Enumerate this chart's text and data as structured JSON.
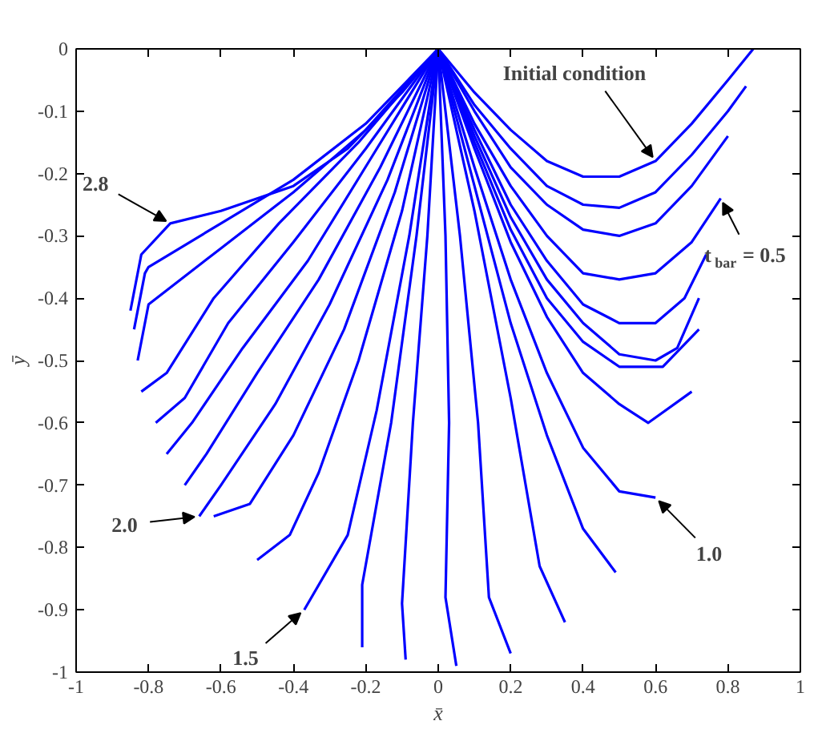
{
  "chart_data": {
    "type": "line",
    "xlabel": "x̄",
    "ylabel": "ȳ",
    "xlim": [
      -1,
      1
    ],
    "ylim": [
      -1,
      0
    ],
    "xticks": [
      -1,
      -0.8,
      -0.6,
      -0.4,
      -0.2,
      0,
      0.2,
      0.4,
      0.6,
      0.8,
      1
    ],
    "yticks": [
      -1,
      -0.9,
      -0.8,
      -0.7,
      -0.6,
      -0.5,
      -0.4,
      -0.3,
      -0.2,
      -0.1,
      0
    ],
    "grid": false,
    "marker": "none",
    "line_style": "solid",
    "annotations": [
      {
        "text": "Initial condition",
        "x": 0.6,
        "y": -0.18
      },
      {
        "text": "t$_{bar}$ = 0.5",
        "x": 0.78,
        "y": -0.24
      },
      {
        "text": "1.0",
        "x": 0.6,
        "y": -0.72
      },
      {
        "text": "1.5",
        "x": -0.37,
        "y": -0.9
      },
      {
        "text": "2.0",
        "x": -0.66,
        "y": -0.75
      },
      {
        "text": "2.8",
        "x": -0.74,
        "y": -0.28
      }
    ],
    "series": [
      {
        "color": "#0000ff",
        "x": [
          0,
          0.1,
          0.2,
          0.3,
          0.4,
          0.5,
          0.6,
          0.7,
          0.8,
          0.87
        ],
        "values": [
          0,
          -0.07,
          -0.13,
          -0.18,
          -0.205,
          -0.205,
          -0.18,
          -0.12,
          -0.05,
          0
        ]
      },
      {
        "color": "#0000ff",
        "x": [
          0,
          0.1,
          0.2,
          0.3,
          0.4,
          0.5,
          0.6,
          0.7,
          0.8,
          0.85
        ],
        "values": [
          0,
          -0.09,
          -0.16,
          -0.22,
          -0.25,
          -0.255,
          -0.23,
          -0.17,
          -0.1,
          -0.06
        ]
      },
      {
        "color": "#0000ff",
        "x": [
          0,
          0.1,
          0.2,
          0.3,
          0.4,
          0.5,
          0.6,
          0.7,
          0.8
        ],
        "values": [
          0,
          -0.1,
          -0.19,
          -0.25,
          -0.29,
          -0.3,
          -0.28,
          -0.22,
          -0.14
        ]
      },
      {
        "color": "#0000ff",
        "x": [
          0,
          0.1,
          0.2,
          0.3,
          0.4,
          0.5,
          0.6,
          0.7,
          0.78
        ],
        "values": [
          0,
          -0.12,
          -0.22,
          -0.3,
          -0.36,
          -0.37,
          -0.36,
          -0.31,
          -0.24
        ]
      },
      {
        "color": "#0000ff",
        "x": [
          0,
          0.1,
          0.2,
          0.3,
          0.4,
          0.5,
          0.6,
          0.68,
          0.74
        ],
        "values": [
          0,
          -0.13,
          -0.25,
          -0.34,
          -0.41,
          -0.44,
          -0.44,
          -0.4,
          -0.33
        ]
      },
      {
        "color": "#0000ff",
        "x": [
          0,
          0.1,
          0.2,
          0.3,
          0.4,
          0.5,
          0.6,
          0.66,
          0.72
        ],
        "values": [
          0,
          -0.14,
          -0.27,
          -0.37,
          -0.44,
          -0.49,
          -0.5,
          -0.48,
          -0.4
        ]
      },
      {
        "color": "#0000ff",
        "x": [
          0,
          0.1,
          0.2,
          0.3,
          0.4,
          0.5,
          0.62,
          0.72
        ],
        "values": [
          0,
          -0.15,
          -0.29,
          -0.4,
          -0.47,
          -0.51,
          -0.51,
          -0.45
        ]
      },
      {
        "color": "#0000ff",
        "x": [
          0,
          0.1,
          0.2,
          0.3,
          0.4,
          0.5,
          0.58,
          0.7
        ],
        "values": [
          0,
          -0.16,
          -0.31,
          -0.43,
          -0.52,
          -0.57,
          -0.6,
          -0.55
        ]
      },
      {
        "color": "#0000ff",
        "x": [
          0,
          0.1,
          0.2,
          0.3,
          0.4,
          0.5,
          0.6
        ],
        "values": [
          0,
          -0.19,
          -0.37,
          -0.52,
          -0.64,
          -0.71,
          -0.72
        ]
      },
      {
        "color": "#0000ff",
        "x": [
          0,
          0.1,
          0.2,
          0.3,
          0.4,
          0.49
        ],
        "values": [
          0,
          -0.22,
          -0.44,
          -0.62,
          -0.77,
          -0.84
        ]
      },
      {
        "color": "#0000ff",
        "x": [
          0,
          0.1,
          0.2,
          0.28,
          0.35
        ],
        "values": [
          0,
          -0.26,
          -0.56,
          -0.83,
          -0.92
        ]
      },
      {
        "color": "#0000ff",
        "x": [
          0,
          0.06,
          0.11,
          0.14,
          0.2
        ],
        "values": [
          0,
          -0.3,
          -0.6,
          -0.88,
          -0.97
        ]
      },
      {
        "color": "#0000ff",
        "x": [
          0,
          0.02,
          0.03,
          0.02,
          0.05
        ],
        "values": [
          0,
          -0.3,
          -0.6,
          -0.88,
          -0.99
        ]
      },
      {
        "color": "#0000ff",
        "x": [
          0,
          -0.03,
          -0.07,
          -0.1,
          -0.09
        ],
        "values": [
          0,
          -0.3,
          -0.6,
          -0.89,
          -0.98
        ]
      },
      {
        "color": "#0000ff",
        "x": [
          0,
          -0.06,
          -0.13,
          -0.21,
          -0.21
        ],
        "values": [
          0,
          -0.3,
          -0.6,
          -0.86,
          -0.96
        ]
      },
      {
        "color": "#0000ff",
        "x": [
          0,
          -0.08,
          -0.17,
          -0.25,
          -0.37
        ],
        "values": [
          0,
          -0.3,
          -0.58,
          -0.78,
          -0.9
        ]
      },
      {
        "color": "#0000ff",
        "x": [
          0,
          -0.1,
          -0.22,
          -0.33,
          -0.41,
          -0.5
        ],
        "values": [
          0,
          -0.26,
          -0.5,
          -0.68,
          -0.78,
          -0.82
        ]
      },
      {
        "color": "#0000ff",
        "x": [
          0,
          -0.12,
          -0.26,
          -0.4,
          -0.52,
          -0.62
        ],
        "values": [
          0,
          -0.23,
          -0.45,
          -0.62,
          -0.73,
          -0.75
        ]
      },
      {
        "color": "#0000ff",
        "x": [
          0,
          -0.14,
          -0.3,
          -0.45,
          -0.6,
          -0.66
        ],
        "values": [
          0,
          -0.21,
          -0.41,
          -0.57,
          -0.7,
          -0.75
        ]
      },
      {
        "color": "#0000ff",
        "x": [
          0,
          -0.16,
          -0.33,
          -0.5,
          -0.64,
          -0.7
        ],
        "values": [
          0,
          -0.19,
          -0.37,
          -0.52,
          -0.65,
          -0.7
        ]
      },
      {
        "color": "#0000ff",
        "x": [
          0,
          -0.18,
          -0.36,
          -0.54,
          -0.68,
          -0.75
        ],
        "values": [
          0,
          -0.17,
          -0.34,
          -0.48,
          -0.6,
          -0.65
        ]
      },
      {
        "color": "#0000ff",
        "x": [
          0,
          -0.2,
          -0.4,
          -0.58,
          -0.7,
          -0.78
        ],
        "values": [
          0,
          -0.16,
          -0.31,
          -0.44,
          -0.56,
          -0.6
        ]
      },
      {
        "color": "#0000ff",
        "x": [
          0,
          -0.22,
          -0.44,
          -0.62,
          -0.75,
          -0.82
        ],
        "values": [
          0,
          -0.15,
          -0.28,
          -0.4,
          -0.52,
          -0.55
        ]
      },
      {
        "color": "#0000ff",
        "x": [
          0,
          -0.2,
          -0.4,
          -0.6,
          -0.8,
          -0.83
        ],
        "values": [
          0,
          -0.13,
          -0.23,
          -0.32,
          -0.41,
          -0.5
        ]
      },
      {
        "color": "#0000ff",
        "x": [
          0,
          -0.2,
          -0.4,
          -0.6,
          -0.8,
          -0.81,
          -0.84
        ],
        "values": [
          0,
          -0.12,
          -0.21,
          -0.28,
          -0.35,
          -0.36,
          -0.45
        ]
      },
      {
        "color": "#0000ff",
        "x": [
          0,
          -0.1,
          -0.25,
          -0.4,
          -0.6,
          -0.74,
          -0.82,
          -0.85
        ],
        "values": [
          0,
          -0.07,
          -0.16,
          -0.22,
          -0.26,
          -0.28,
          -0.33,
          -0.42
        ]
      }
    ]
  }
}
